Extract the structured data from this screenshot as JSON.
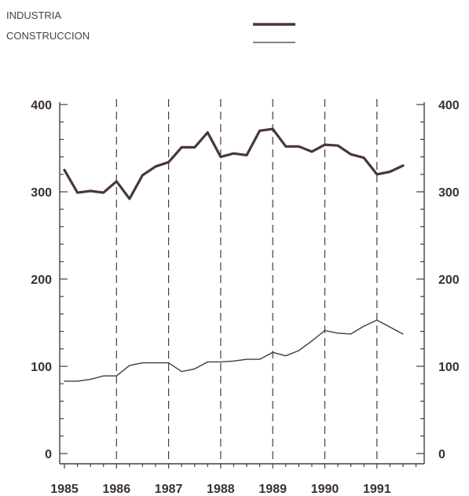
{
  "chart_data": {
    "type": "line",
    "title": "",
    "xlabel": "",
    "ylabel": "",
    "ylim": [
      0,
      400
    ],
    "y_ticks": [
      "0",
      "100",
      "200",
      "300",
      "400"
    ],
    "x_ticks": [
      "1985",
      "1986",
      "1987",
      "1988",
      "1989",
      "1990",
      "1991"
    ],
    "grid": "vertical dashed lines at each year",
    "legend_position": "top",
    "colors": {
      "line": "#4a3542",
      "axis": "#4a3a45",
      "text": "#3a3038"
    },
    "series": [
      {
        "name": "INDUSTRIA",
        "x": [
          1985.0,
          1985.25,
          1985.5,
          1985.75,
          1986.0,
          1986.25,
          1986.5,
          1986.75,
          1987.0,
          1987.25,
          1987.5,
          1987.75,
          1988.0,
          1988.25,
          1988.5,
          1988.75,
          1989.0,
          1989.25,
          1989.5,
          1989.75,
          1990.0,
          1990.25,
          1990.5,
          1990.75,
          1991.0,
          1991.25,
          1991.5
        ],
        "values": [
          325,
          299,
          301,
          299,
          312,
          292,
          319,
          329,
          334,
          351,
          351,
          368,
          340,
          344,
          342,
          370,
          372,
          352,
          352,
          346,
          354,
          353,
          343,
          339,
          320,
          323,
          330
        ]
      },
      {
        "name": "CONSTRUCCION",
        "x": [
          1985.0,
          1985.25,
          1985.5,
          1985.75,
          1986.0,
          1986.25,
          1986.5,
          1986.75,
          1987.0,
          1987.25,
          1987.5,
          1987.75,
          1988.0,
          1988.25,
          1988.5,
          1988.75,
          1989.0,
          1989.25,
          1989.5,
          1989.75,
          1990.0,
          1990.25,
          1990.5,
          1990.75,
          1991.0,
          1991.25,
          1991.5
        ],
        "values": [
          83,
          83,
          85,
          89,
          89,
          101,
          104,
          104,
          104,
          94,
          97,
          105,
          105,
          106,
          108,
          108,
          116,
          112,
          118,
          129,
          141,
          138,
          137,
          146,
          153,
          145,
          137
        ]
      }
    ]
  }
}
